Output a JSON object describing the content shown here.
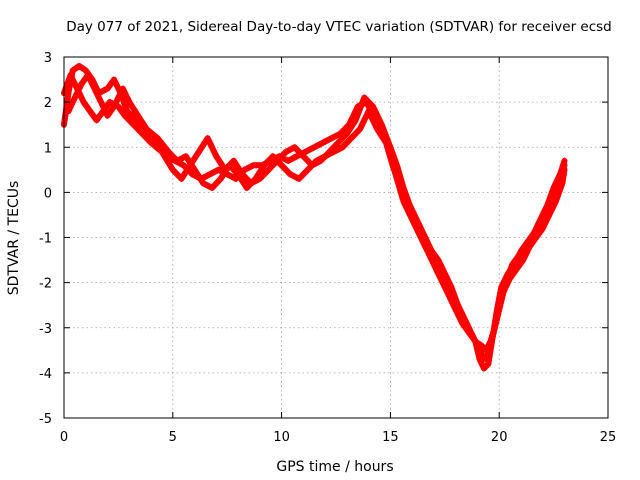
{
  "chart_data": {
    "type": "scatter",
    "title": "Day 077 of 2021, Sidereal Day-to-day VTEC variation (SDTVAR) for receiver ecsd",
    "xlabel": "GPS time / hours",
    "ylabel": "SDTVAR / TECUs",
    "xlim": [
      0,
      25
    ],
    "ylim": [
      -5,
      3
    ],
    "xticks": [
      0,
      5,
      10,
      15,
      20,
      25
    ],
    "yticks": [
      -5,
      -4,
      -3,
      -2,
      -1,
      0,
      1,
      2,
      3
    ],
    "grid": true,
    "marker": "+",
    "color": "#ff0000",
    "series": [
      {
        "x": [
          0.0,
          0.2,
          0.4,
          0.7,
          1.0,
          1.3,
          1.6,
          2.0,
          2.3,
          2.6,
          2.9,
          3.3,
          3.7,
          4.2,
          4.7,
          5.1,
          5.5,
          5.9,
          6.3,
          6.7,
          7.1,
          7.5,
          7.9,
          8.3,
          8.7,
          9.1,
          9.5,
          9.9,
          10.3,
          10.7,
          11.1,
          11.5,
          11.9,
          12.3,
          12.7,
          13.1,
          13.5,
          13.9,
          14.3,
          14.7,
          15.0,
          15.3,
          15.6,
          15.9,
          16.2,
          16.5,
          16.8,
          17.1,
          17.4,
          17.7,
          18.0,
          18.3,
          18.6,
          18.9,
          19.2,
          19.4,
          19.6,
          19.8,
          20.0,
          20.2,
          20.5,
          20.8,
          21.1,
          21.4,
          21.7,
          22.0,
          22.3,
          22.6,
          22.9,
          23.0
        ],
        "y": [
          1.5,
          2.2,
          2.7,
          2.8,
          2.7,
          2.5,
          2.2,
          2.3,
          2.5,
          2.2,
          1.8,
          1.6,
          1.4,
          1.1,
          0.8,
          0.7,
          0.6,
          0.4,
          0.3,
          0.4,
          0.5,
          0.4,
          0.3,
          0.5,
          0.6,
          0.6,
          0.7,
          0.8,
          0.7,
          0.8,
          0.9,
          1.0,
          1.1,
          1.2,
          1.3,
          1.5,
          1.9,
          2.0,
          1.6,
          1.3,
          0.8,
          0.3,
          -0.2,
          -0.5,
          -0.8,
          -1.1,
          -1.4,
          -1.7,
          -2.0,
          -2.3,
          -2.6,
          -2.9,
          -3.1,
          -3.3,
          -3.4,
          -3.5,
          -3.3,
          -3.0,
          -2.6,
          -2.2,
          -1.9,
          -1.7,
          -1.5,
          -1.2,
          -1.0,
          -0.8,
          -0.5,
          -0.2,
          0.2,
          0.5
        ]
      },
      {
        "x": [
          0.0,
          0.3,
          0.6,
          0.9,
          1.2,
          1.5,
          1.8,
          2.1,
          2.5,
          2.8,
          3.2,
          3.6,
          4.0,
          4.5,
          5.0,
          5.4,
          5.8,
          6.2,
          6.6,
          7.0,
          7.4,
          7.8,
          8.2,
          8.6,
          9.0,
          9.4,
          9.8,
          10.2,
          10.6,
          11.0,
          11.4,
          11.8,
          12.2,
          12.6,
          13.0,
          13.4,
          13.8,
          14.2,
          14.6,
          15.0,
          15.3,
          15.6,
          15.9,
          16.2,
          16.5,
          16.8,
          17.1,
          17.4,
          17.7,
          18.0,
          18.3,
          18.6,
          18.9,
          19.1,
          19.3,
          19.5,
          19.7,
          19.9,
          20.1,
          20.4,
          20.7,
          21.0,
          21.3,
          21.6,
          21.9,
          22.2,
          22.5,
          22.8,
          23.0
        ],
        "y": [
          2.2,
          2.6,
          2.3,
          2.0,
          1.8,
          1.6,
          1.8,
          2.0,
          1.9,
          1.7,
          1.5,
          1.3,
          1.1,
          0.9,
          0.5,
          0.3,
          0.6,
          0.9,
          1.2,
          0.8,
          0.5,
          0.7,
          0.4,
          0.2,
          0.3,
          0.5,
          0.7,
          0.9,
          1.0,
          0.8,
          0.6,
          0.7,
          0.9,
          1.1,
          1.3,
          1.6,
          2.1,
          1.9,
          1.5,
          1.0,
          0.6,
          0.1,
          -0.3,
          -0.6,
          -0.9,
          -1.3,
          -1.6,
          -1.9,
          -2.2,
          -2.4,
          -2.7,
          -3.0,
          -3.3,
          -3.7,
          -3.9,
          -3.8,
          -3.2,
          -2.6,
          -2.1,
          -1.8,
          -1.6,
          -1.3,
          -1.1,
          -0.9,
          -0.6,
          -0.3,
          0.1,
          0.4,
          0.7
        ]
      },
      {
        "x": [
          0.2,
          0.5,
          0.8,
          1.1,
          1.4,
          1.7,
          2.0,
          2.3,
          2.7,
          3.0,
          3.4,
          3.8,
          4.3,
          4.8,
          5.2,
          5.6,
          6.0,
          6.4,
          6.8,
          7.2,
          7.6,
          8.0,
          8.4,
          8.8,
          9.2,
          9.6,
          10.0,
          10.4,
          10.8,
          11.2,
          11.6,
          12.0,
          12.4,
          12.8,
          13.2,
          13.6,
          14.0,
          14.4,
          14.8,
          15.1,
          15.4,
          15.7,
          16.0,
          16.3,
          16.6,
          16.9,
          17.2,
          17.5,
          17.8,
          18.1,
          18.4,
          18.7,
          19.0,
          19.2,
          19.4,
          19.6,
          19.8,
          20.0,
          20.3,
          20.6,
          20.9,
          21.2,
          21.5,
          21.8,
          22.1,
          22.4,
          22.7,
          23.0
        ],
        "y": [
          1.8,
          2.1,
          2.4,
          2.6,
          2.3,
          2.0,
          1.7,
          1.9,
          2.3,
          2.0,
          1.7,
          1.4,
          1.2,
          0.9,
          0.7,
          0.8,
          0.5,
          0.2,
          0.1,
          0.3,
          0.6,
          0.4,
          0.1,
          0.3,
          0.6,
          0.8,
          0.6,
          0.4,
          0.3,
          0.5,
          0.7,
          0.8,
          0.9,
          1.0,
          1.2,
          1.4,
          1.8,
          1.4,
          1.1,
          0.6,
          0.2,
          -0.1,
          -0.4,
          -0.7,
          -1.0,
          -1.3,
          -1.5,
          -1.8,
          -2.1,
          -2.5,
          -2.8,
          -3.1,
          -3.4,
          -3.6,
          -3.7,
          -3.4,
          -3.0,
          -2.5,
          -2.0,
          -1.6,
          -1.4,
          -1.2,
          -1.0,
          -0.7,
          -0.4,
          -0.1,
          0.3,
          0.6
        ]
      }
    ]
  }
}
